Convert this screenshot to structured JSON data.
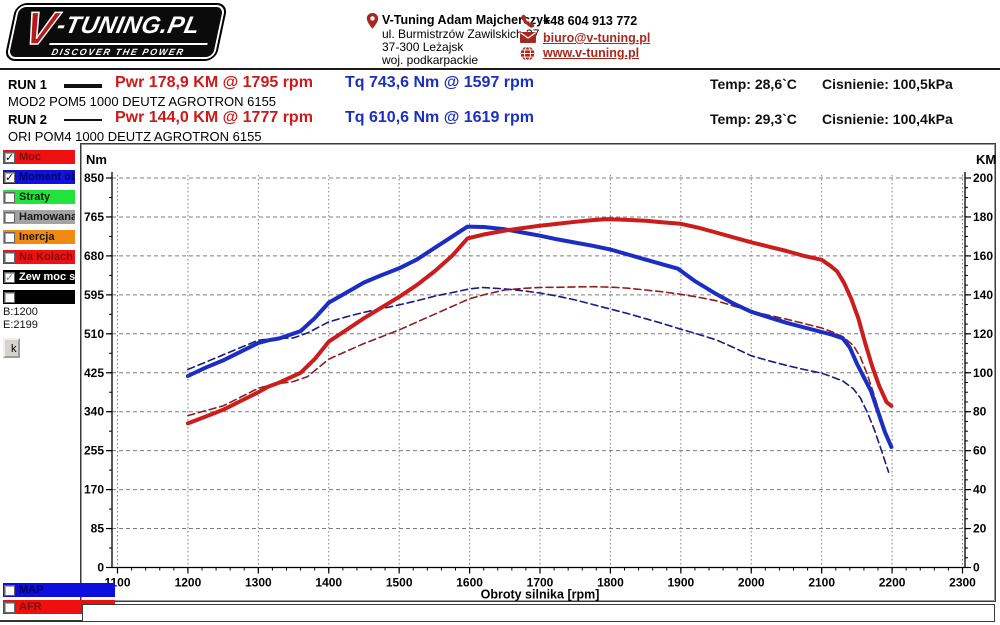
{
  "header": {
    "logo": {
      "v": "V",
      "rest": "-TUNING.PL",
      "tagline": "DISCOVER THE POWER"
    },
    "contact": {
      "name": "V-Tuning Adam Majcherczyk",
      "address_line1": "ul. Burmistrzów Zawilskich 37",
      "address_line2": "37-300 Leżajsk",
      "address_line3": "woj. podkarpackie",
      "phone": "+48 604 913 772",
      "email": "biuro@v-tuning.pl",
      "website": "www.v-tuning.pl",
      "icon_color": "#a8281e"
    }
  },
  "runs": [
    {
      "label": "RUN 1",
      "power_label": "Pwr  178,9 KM @ 1795 rpm",
      "torque_label": "Tq 743,6 Nm @ 1597 rpm",
      "temp": "Temp: 28,6`C",
      "pressure": "Cisnienie: 100,5kPa",
      "desc": "MOD2 POM5 1000 DEUTZ AGROTRON 6155"
    },
    {
      "label": "RUN 2",
      "power_label": "Pwr  144,0 KM @ 1777 rpm",
      "torque_label": "Tq 610,6 Nm @ 1619 rpm",
      "temp": "Temp: 29,3`C",
      "pressure": "Cisnienie: 100,4kPa",
      "desc": "ORI POM4 1000 DEUTZ AGROTRON 6155"
    }
  ],
  "sidebar": {
    "items": [
      {
        "id": "moc",
        "label": "Moc",
        "bar_color": "#ee1111",
        "text_color": "#7e0f0f",
        "checked": true,
        "disabled": false
      },
      {
        "id": "moment-obr",
        "label": "Moment obr",
        "bar_color": "#1212d6",
        "text_color": "#00006e",
        "checked": true,
        "disabled": false
      },
      {
        "id": "straty",
        "label": "Straty",
        "bar_color": "#22e23c",
        "text_color": "#0c220c",
        "checked": false,
        "disabled": false
      },
      {
        "id": "hamowana",
        "label": "Hamowana",
        "bar_color": "#a3a3a3",
        "text_color": "#1a1a1a",
        "checked": false,
        "disabled": false
      },
      {
        "id": "inercja",
        "label": "Inercja",
        "bar_color": "#f08a12",
        "text_color": "#1a1a1a",
        "checked": false,
        "disabled": false
      },
      {
        "id": "na-kolach",
        "label": "Na Kolach",
        "bar_color": "#ee1111",
        "text_color": "#7e0f0f",
        "checked": false,
        "disabled": false
      },
      {
        "id": "zew-moc",
        "label": "Zew moc st",
        "bar_color": "#000000",
        "text_color": "#ffffff",
        "checked": true,
        "disabled": true
      },
      {
        "id": "extra",
        "label": "",
        "bar_color": "#000000",
        "text_color": "#ffffff",
        "checked": false,
        "disabled": false
      }
    ],
    "range_begin": "B:1200",
    "range_end": "E:2199",
    "k_button": "k",
    "bottom_items": [
      {
        "id": "map",
        "label": "MAP",
        "bar_color": "#0d0de0",
        "text_color": "#00005e",
        "checked": false,
        "disabled": false
      },
      {
        "id": "afr",
        "label": "AFR",
        "bar_color": "#ee0f0f",
        "text_color": "#7e0f0f",
        "checked": false,
        "disabled": false
      }
    ]
  },
  "chart_data": {
    "type": "line",
    "x_axis": {
      "title": "Obroty silnika [rpm]",
      "min": 1100,
      "max": 2300,
      "tick_step": 100,
      "minor_step": 20
    },
    "y_left": {
      "title": "Nm",
      "min": 0,
      "max": 850,
      "tick_step": 85,
      "minor_step": 42.5
    },
    "y_right": {
      "title": "KM",
      "min": 0,
      "max": 200,
      "tick_step": 20,
      "minor_step": 5
    },
    "grid": {
      "h_color": "#7d7d7d",
      "v_color": "#7d7d7d"
    },
    "series": [
      {
        "id": "run2-torque",
        "name": "RUN 2 Moment obrotowy (Nm)",
        "axis": "left",
        "color": "#1a1a85",
        "style": "dashed",
        "width": 1.6,
        "points": [
          [
            1200,
            432
          ],
          [
            1225,
            448
          ],
          [
            1250,
            464
          ],
          [
            1275,
            480
          ],
          [
            1300,
            496
          ],
          [
            1320,
            499
          ],
          [
            1350,
            501
          ],
          [
            1370,
            512
          ],
          [
            1400,
            536
          ],
          [
            1425,
            547
          ],
          [
            1450,
            557
          ],
          [
            1475,
            565
          ],
          [
            1500,
            573
          ],
          [
            1525,
            582
          ],
          [
            1550,
            592
          ],
          [
            1575,
            600
          ],
          [
            1600,
            608
          ],
          [
            1619,
            611
          ],
          [
            1650,
            608
          ],
          [
            1675,
            604
          ],
          [
            1700,
            599
          ],
          [
            1725,
            592
          ],
          [
            1750,
            584
          ],
          [
            1775,
            574
          ],
          [
            1800,
            564
          ],
          [
            1825,
            554
          ],
          [
            1850,
            543
          ],
          [
            1875,
            532
          ],
          [
            1900,
            520
          ],
          [
            1925,
            509
          ],
          [
            1950,
            497
          ],
          [
            1975,
            480
          ],
          [
            2000,
            462
          ],
          [
            2025,
            451
          ],
          [
            2050,
            441
          ],
          [
            2075,
            432
          ],
          [
            2100,
            424
          ],
          [
            2115,
            416
          ],
          [
            2130,
            407
          ],
          [
            2145,
            390
          ],
          [
            2155,
            370
          ],
          [
            2165,
            338
          ],
          [
            2175,
            300
          ],
          [
            2185,
            255
          ],
          [
            2195,
            208
          ]
        ]
      },
      {
        "id": "run2-power",
        "name": "RUN 2 Moc (KM)",
        "axis": "right",
        "color": "#8f1d1d",
        "style": "dashed",
        "width": 1.6,
        "points": [
          [
            1200,
            78
          ],
          [
            1225,
            80.5
          ],
          [
            1250,
            83
          ],
          [
            1275,
            87.5
          ],
          [
            1300,
            92
          ],
          [
            1320,
            94
          ],
          [
            1350,
            95.5
          ],
          [
            1370,
            98
          ],
          [
            1400,
            107
          ],
          [
            1425,
            111
          ],
          [
            1450,
            115
          ],
          [
            1475,
            118.5
          ],
          [
            1500,
            122
          ],
          [
            1525,
            126
          ],
          [
            1550,
            130
          ],
          [
            1575,
            134
          ],
          [
            1600,
            138
          ],
          [
            1625,
            140.5
          ],
          [
            1650,
            142.5
          ],
          [
            1675,
            143.3
          ],
          [
            1700,
            143.8
          ],
          [
            1725,
            143.9
          ],
          [
            1750,
            144.1
          ],
          [
            1777,
            144.2
          ],
          [
            1800,
            144
          ],
          [
            1825,
            143.4
          ],
          [
            1850,
            142.5
          ],
          [
            1875,
            141.5
          ],
          [
            1900,
            140.3
          ],
          [
            1925,
            138.8
          ],
          [
            1950,
            137
          ],
          [
            1975,
            134.3
          ],
          [
            2000,
            131.5
          ],
          [
            2025,
            129.5
          ],
          [
            2050,
            127.5
          ],
          [
            2075,
            125.3
          ],
          [
            2100,
            123
          ],
          [
            2115,
            121
          ],
          [
            2130,
            118.5
          ],
          [
            2145,
            114
          ],
          [
            2155,
            108
          ],
          [
            2165,
            99
          ],
          [
            2175,
            88
          ],
          [
            2185,
            76
          ],
          [
            2196,
            64
          ]
        ]
      },
      {
        "id": "run1-torque",
        "name": "RUN 1 Moment obrotowy (Nm)",
        "axis": "left",
        "color": "#1b2dc2",
        "style": "solid",
        "width": 4,
        "points": [
          [
            1200,
            418
          ],
          [
            1225,
            436
          ],
          [
            1250,
            452
          ],
          [
            1275,
            471
          ],
          [
            1300,
            490
          ],
          [
            1315,
            496
          ],
          [
            1330,
            500
          ],
          [
            1360,
            516
          ],
          [
            1380,
            544
          ],
          [
            1400,
            578
          ],
          [
            1425,
            600
          ],
          [
            1450,
            622
          ],
          [
            1475,
            638
          ],
          [
            1500,
            653
          ],
          [
            1525,
            672
          ],
          [
            1550,
            697
          ],
          [
            1575,
            722
          ],
          [
            1597,
            744
          ],
          [
            1620,
            743
          ],
          [
            1650,
            738
          ],
          [
            1675,
            731
          ],
          [
            1700,
            724
          ],
          [
            1725,
            716
          ],
          [
            1750,
            709
          ],
          [
            1775,
            702
          ],
          [
            1800,
            694
          ],
          [
            1825,
            683
          ],
          [
            1850,
            672
          ],
          [
            1875,
            661
          ],
          [
            1896,
            652
          ],
          [
            1920,
            625
          ],
          [
            1950,
            597
          ],
          [
            1975,
            576
          ],
          [
            2000,
            558
          ],
          [
            2025,
            546
          ],
          [
            2050,
            534
          ],
          [
            2075,
            524
          ],
          [
            2100,
            514
          ],
          [
            2115,
            508
          ],
          [
            2130,
            500
          ],
          [
            2140,
            480
          ],
          [
            2150,
            445
          ],
          [
            2160,
            415
          ],
          [
            2170,
            385
          ],
          [
            2180,
            340
          ],
          [
            2190,
            295
          ],
          [
            2199,
            263
          ]
        ]
      },
      {
        "id": "run1-power",
        "name": "RUN 1 Moc (KM)",
        "axis": "right",
        "color": "#cc1d1d",
        "style": "solid",
        "width": 4,
        "points": [
          [
            1200,
            74
          ],
          [
            1225,
            77.5
          ],
          [
            1250,
            81
          ],
          [
            1275,
            85.5
          ],
          [
            1300,
            90
          ],
          [
            1315,
            93
          ],
          [
            1330,
            95
          ],
          [
            1360,
            100
          ],
          [
            1380,
            107
          ],
          [
            1400,
            116
          ],
          [
            1425,
            122
          ],
          [
            1450,
            128
          ],
          [
            1475,
            133.5
          ],
          [
            1500,
            139
          ],
          [
            1525,
            145
          ],
          [
            1550,
            152
          ],
          [
            1575,
            160
          ],
          [
            1597,
            169
          ],
          [
            1620,
            171
          ],
          [
            1650,
            173
          ],
          [
            1675,
            174.3
          ],
          [
            1700,
            175.5
          ],
          [
            1725,
            176.5
          ],
          [
            1750,
            177.5
          ],
          [
            1775,
            178.4
          ],
          [
            1795,
            178.9
          ],
          [
            1825,
            178.5
          ],
          [
            1850,
            178
          ],
          [
            1875,
            177.2
          ],
          [
            1900,
            176.5
          ],
          [
            1925,
            174.5
          ],
          [
            1950,
            172
          ],
          [
            1975,
            169.5
          ],
          [
            2000,
            167
          ],
          [
            2025,
            164.7
          ],
          [
            2050,
            162.5
          ],
          [
            2075,
            160
          ],
          [
            2100,
            158
          ],
          [
            2112,
            155
          ],
          [
            2122,
            152
          ],
          [
            2132,
            146
          ],
          [
            2142,
            138
          ],
          [
            2152,
            128
          ],
          [
            2162,
            115
          ],
          [
            2172,
            103
          ],
          [
            2182,
            93
          ],
          [
            2192,
            85
          ],
          [
            2199,
            83
          ]
        ]
      }
    ]
  }
}
